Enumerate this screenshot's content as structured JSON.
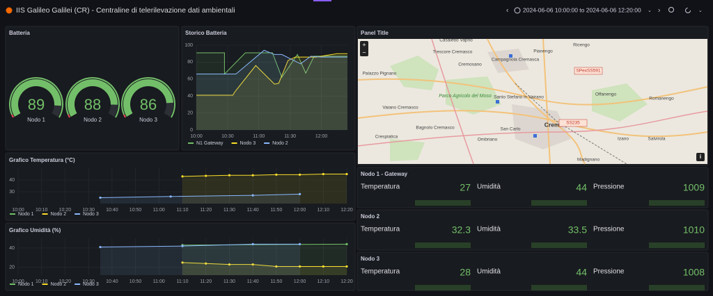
{
  "header": {
    "title": "IIS Galileo Galilei (CR) - Centraline di telerilevazione dati ambientali",
    "time_range": "2024-06-06 10:00:00 to 2024-06-06 12:20:00"
  },
  "battery": {
    "title": "Batteria",
    "range": [
      0,
      100
    ],
    "gauges": [
      {
        "name": "Nodo 1",
        "value": 89
      },
      {
        "name": "Nodo 2",
        "value": 88
      },
      {
        "name": "Nodo 3",
        "value": 86
      }
    ]
  },
  "battery_history": {
    "type": "line",
    "title": "Storico Batteria",
    "xlim": [
      "10:00",
      "12:25"
    ],
    "xticks": [
      "10:00",
      "10:30",
      "11:00",
      "11:30",
      "12:00"
    ],
    "ylim": [
      0,
      100
    ],
    "yticks": [
      0,
      20,
      40,
      60,
      80,
      100
    ],
    "points": false,
    "series": [
      {
        "name": "N1 Gateway",
        "color": "#73bf69",
        "x": [
          "10:00",
          "10:27",
          "10:27",
          "10:47",
          "11:13",
          "11:22",
          "11:37",
          "11:45",
          "11:53",
          "12:25"
        ],
        "values": [
          91,
          91,
          66,
          91,
          91,
          62,
          89,
          67,
          87,
          87
        ]
      },
      {
        "name": "Nodo 3",
        "color": "#fade2a",
        "x": [
          "10:00",
          "10:35",
          "10:37",
          "10:57",
          "11:15",
          "11:19",
          "11:28",
          "11:35",
          "11:55",
          "12:05",
          "12:15",
          "12:25"
        ],
        "values": [
          41,
          41,
          45,
          76,
          54,
          55,
          82,
          86,
          86,
          88,
          90,
          90
        ]
      },
      {
        "name": "Nodo 2",
        "color": "#8ab8ff",
        "x": [
          "10:00",
          "10:35",
          "10:38",
          "11:05",
          "11:15",
          "11:22",
          "11:40",
          "11:50",
          "12:00",
          "12:10",
          "12:25"
        ],
        "values": [
          66,
          66,
          66,
          94,
          89,
          89,
          78,
          87,
          86,
          86,
          86
        ]
      }
    ]
  },
  "temperature": {
    "type": "line",
    "title": "Grafico Temperatura (°C)",
    "xlim": [
      "10:00",
      "12:20"
    ],
    "xticks": [
      "10:00",
      "10:10",
      "10:20",
      "10:30",
      "10:40",
      "10:50",
      "11:00",
      "11:10",
      "11:20",
      "11:30",
      "11:40",
      "11:50",
      "12:00",
      "12:10",
      "12:20"
    ],
    "ylim": [
      20,
      50
    ],
    "yticks": [
      30,
      40
    ],
    "points": true,
    "series": [
      {
        "name": "Nodo 1",
        "color": "#73bf69",
        "x": [],
        "values": []
      },
      {
        "name": "Nodo 2",
        "color": "#fade2a",
        "x": [
          "11:10",
          "11:20",
          "11:30",
          "11:40",
          "11:50",
          "12:00",
          "12:10",
          "12:20"
        ],
        "values": [
          43,
          43.5,
          44,
          44,
          44.5,
          44.5,
          45,
          45
        ]
      },
      {
        "name": "Nodo 3",
        "color": "#8ab8ff",
        "x": [
          "10:35",
          "11:05",
          "11:40",
          "12:00"
        ],
        "values": [
          25,
          26,
          27,
          28
        ]
      }
    ]
  },
  "humidity": {
    "type": "line",
    "title": "Grafico Umidità (%)",
    "xlim": [
      "10:00",
      "12:20"
    ],
    "xticks": [
      "10:00",
      "10:10",
      "10:20",
      "10:30",
      "10:40",
      "10:50",
      "11:00",
      "11:10",
      "11:20",
      "11:30",
      "11:40",
      "11:50",
      "12:00",
      "12:10",
      "12:20"
    ],
    "ylim": [
      12,
      50
    ],
    "yticks": [
      20,
      40
    ],
    "points": true,
    "series": [
      {
        "name": "Nodo 1",
        "color": "#73bf69",
        "x": [
          "11:10",
          "12:20"
        ],
        "values": [
          43,
          44
        ]
      },
      {
        "name": "Nodo 2",
        "color": "#fade2a",
        "x": [
          "11:10",
          "11:20",
          "11:30",
          "11:40",
          "11:50",
          "12:00",
          "12:10",
          "12:20"
        ],
        "values": [
          25,
          24,
          23,
          23,
          21,
          21,
          21,
          21
        ]
      },
      {
        "name": "Nodo 3",
        "color": "#8ab8ff",
        "x": [
          "10:35",
          "11:10",
          "11:40",
          "12:00"
        ],
        "values": [
          41,
          42,
          44,
          44
        ]
      }
    ]
  },
  "map": {
    "title": "Panel Title",
    "labels": [
      "Casaletto Vaprio",
      "Trescore Cremasco",
      "Campagnola Cremasca",
      "Pianengo",
      "Ricengo",
      "Cremosano",
      "SPexSS591",
      "Palazzo Pignano",
      "Parco Agricolo del Moso",
      "Santo Stefano in Vairano",
      "Offanengo",
      "Romanengo",
      "Vaiano Cremasco",
      "Crema",
      "SS235",
      "Bagnolo Cremasco",
      "San Carlo",
      "Crespiatica",
      "Ombriano",
      "Izano",
      "Salvirola",
      "Madignano"
    ]
  },
  "stats": [
    {
      "title": "Nodo 1 - Gateway",
      "items": [
        {
          "label": "Temperatura",
          "value": 27
        },
        {
          "label": "Umidità",
          "value": 44
        },
        {
          "label": "Pressione",
          "value": 1009
        }
      ]
    },
    {
      "title": "Nodo 2",
      "items": [
        {
          "label": "Temperatura",
          "value": 32.3
        },
        {
          "label": "Umidità",
          "value": 33.5
        },
        {
          "label": "Pressione",
          "value": 1010
        }
      ]
    },
    {
      "title": "Nodo 3",
      "items": [
        {
          "label": "Temperatura",
          "value": 28
        },
        {
          "label": "Umidità",
          "value": 44
        },
        {
          "label": "Pressione",
          "value": 1008
        }
      ]
    }
  ]
}
